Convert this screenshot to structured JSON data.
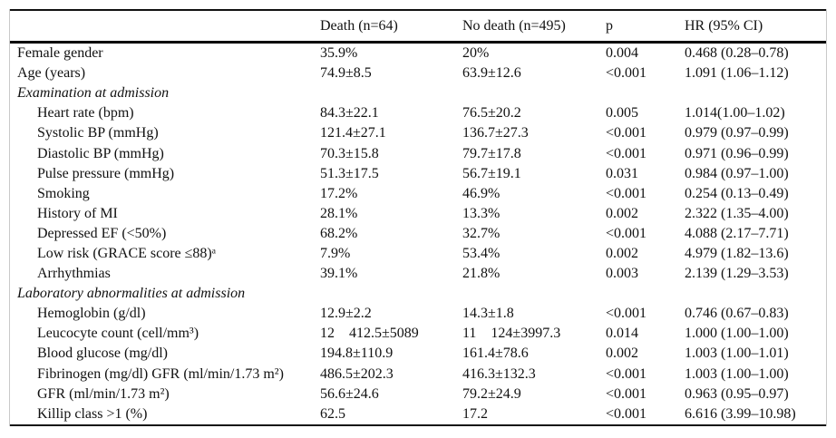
{
  "table": {
    "columns": [
      {
        "label": ""
      },
      {
        "label": "Death (n=64)"
      },
      {
        "label": "No death (n=495)"
      },
      {
        "label": "p"
      },
      {
        "label": "HR (95% CI)"
      }
    ],
    "rows": [
      {
        "label": "Female gender",
        "indent": false,
        "section": false,
        "death": "35.9%",
        "no_death": "20%",
        "p": "0.004",
        "hr": "0.468 (0.28–0.78)"
      },
      {
        "label": "Age (years)",
        "indent": false,
        "section": false,
        "death": "74.9±8.5",
        "no_death": "63.9±12.6",
        "p": "<0.001",
        "hr": "1.091 (1.06–1.12)"
      },
      {
        "label": "Examination at admission",
        "indent": false,
        "section": true,
        "death": "",
        "no_death": "",
        "p": "",
        "hr": ""
      },
      {
        "label": "Heart rate (bpm)",
        "indent": true,
        "section": false,
        "death": "84.3±22.1",
        "no_death": "76.5±20.2",
        "p": "0.005",
        "hr": "1.014(1.00–1.02)"
      },
      {
        "label": "Systolic BP (mmHg)",
        "indent": true,
        "section": false,
        "death": "121.4±27.1",
        "no_death": "136.7±27.3",
        "p": "<0.001",
        "hr": "0.979 (0.97–0.99)"
      },
      {
        "label": "Diastolic BP (mmHg)",
        "indent": true,
        "section": false,
        "death": "70.3±15.8",
        "no_death": "79.7±17.8",
        "p": "<0.001",
        "hr": "0.971 (0.96–0.99)"
      },
      {
        "label": "Pulse pressure (mmHg)",
        "indent": true,
        "section": false,
        "death": "51.3±17.5",
        "no_death": "56.7±19.1",
        "p": "0.031",
        "hr": "0.984 (0.97–1.00)"
      },
      {
        "label": "Smoking",
        "indent": true,
        "section": false,
        "death": "17.2%",
        "no_death": "46.9%",
        "p": "<0.001",
        "hr": "0.254 (0.13–0.49)"
      },
      {
        "label": "History of MI",
        "indent": true,
        "section": false,
        "death": "28.1%",
        "no_death": "13.3%",
        "p": "0.002",
        "hr": "2.322 (1.35–4.00)"
      },
      {
        "label": "Depressed EF (<50%)",
        "indent": true,
        "section": false,
        "death": "68.2%",
        "no_death": "32.7%",
        "p": "<0.001",
        "hr": "4.088 (2.17–7.71)"
      },
      {
        "label": "Low risk (GRACE score ≤88)ᵃ",
        "indent": true,
        "section": false,
        "death": "7.9%",
        "no_death": "53.4%",
        "p": "0.002",
        "hr": "4.979 (1.82–13.6)"
      },
      {
        "label": "Arrhythmias",
        "indent": true,
        "section": false,
        "death": "39.1%",
        "no_death": "21.8%",
        "p": "0.003",
        "hr": "2.139 (1.29–3.53)"
      },
      {
        "label": "Laboratory abnormalities at admission",
        "indent": false,
        "section": true,
        "death": "",
        "no_death": "",
        "p": "",
        "hr": ""
      },
      {
        "label": "Hemoglobin (g/dl)",
        "indent": true,
        "section": false,
        "death": "12.9±2.2",
        "no_death": "14.3±1.8",
        "p": "<0.001",
        "hr": "0.746 (0.67–0.83)"
      },
      {
        "label": "Leucocyte count (cell/mm³)",
        "indent": true,
        "section": false,
        "death": "12    412.5±5089",
        "no_death": "11    124±3997.3",
        "p": "0.014",
        "hr": "1.000 (1.00–1.00)"
      },
      {
        "label": "Blood glucose (mg/dl)",
        "indent": true,
        "section": false,
        "death": "194.8±110.9",
        "no_death": "161.4±78.6",
        "p": "0.002",
        "hr": "1.003 (1.00–1.01)"
      },
      {
        "label": "Fibrinogen (mg/dl) GFR (ml/min/1.73 m²)",
        "indent": true,
        "section": false,
        "death": "486.5±202.3",
        "no_death": "416.3±132.3",
        "p": "<0.001",
        "hr": "1.003 (1.00–1.00)"
      },
      {
        "label": "GFR (ml/min/1.73 m²)",
        "indent": true,
        "section": false,
        "death": "56.6±24.6",
        "no_death": "79.2±24.9",
        "p": "<0.001",
        "hr": "0.963 (0.95–0.97)"
      },
      {
        "label": "Killip class >1 (%)",
        "indent": true,
        "section": false,
        "death": "62.5",
        "no_death": "17.2",
        "p": "<0.001",
        "hr": "6.616 (3.99–10.98)"
      }
    ]
  }
}
